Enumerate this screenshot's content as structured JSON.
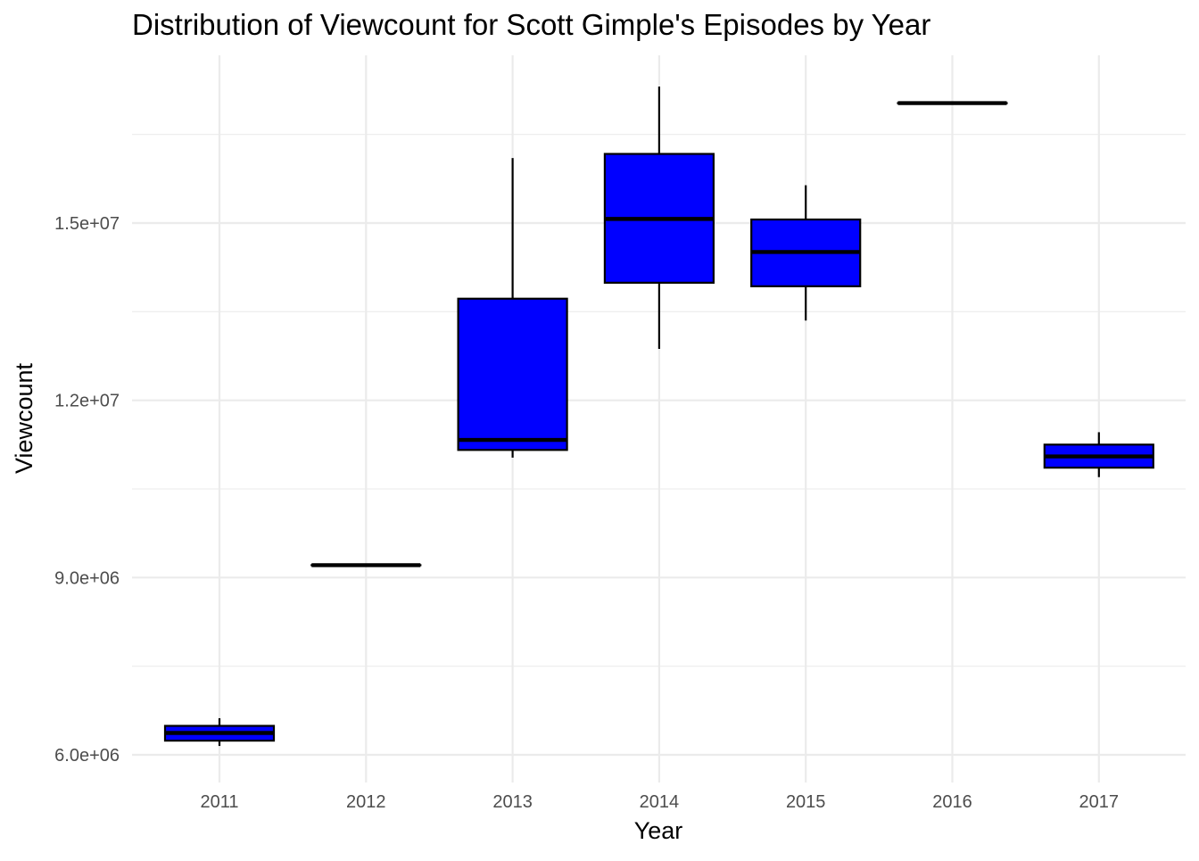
{
  "chart_data": {
    "type": "boxplot",
    "title": "Distribution of Viewcount for Scott Gimple's Episodes by Year",
    "xlabel": "Year",
    "ylabel": "Viewcount",
    "categories": [
      "2011",
      "2012",
      "2013",
      "2014",
      "2015",
      "2016",
      "2017"
    ],
    "boxes": [
      {
        "category": "2011",
        "min": 6150000,
        "q1": 6240000,
        "median": 6370000,
        "q3": 6490000,
        "max": 6620000
      },
      {
        "category": "2012",
        "min": 9210000,
        "q1": 9210000,
        "median": 9210000,
        "q3": 9210000,
        "max": 9210000
      },
      {
        "category": "2013",
        "min": 11030000,
        "q1": 11160000,
        "median": 11330000,
        "q3": 13720000,
        "max": 16100000
      },
      {
        "category": "2014",
        "min": 12870000,
        "q1": 13990000,
        "median": 15070000,
        "q3": 16170000,
        "max": 17310000
      },
      {
        "category": "2015",
        "min": 13350000,
        "q1": 13930000,
        "median": 14510000,
        "q3": 15060000,
        "max": 15640000
      },
      {
        "category": "2016",
        "min": 17030000,
        "q1": 17030000,
        "median": 17030000,
        "q3": 17030000,
        "max": 17030000
      },
      {
        "category": "2017",
        "min": 10700000,
        "q1": 10860000,
        "median": 11050000,
        "q3": 11250000,
        "max": 11460000
      }
    ],
    "y_ticks": [
      6000000,
      9000000,
      12000000,
      15000000
    ],
    "y_tick_labels": [
      "6.0e+06",
      "9.0e+06",
      "1.2e+07",
      "1.5e+07"
    ],
    "y_minor_ticks": [
      7500000,
      10500000,
      13500000,
      16500000
    ],
    "ylim": [
      5600000,
      17850000
    ],
    "grid": true,
    "legend": "none",
    "colors": {
      "box_fill": "#0000ff",
      "box_stroke": "#000000",
      "grid": "#ebebeb",
      "tick_text": "#4d4d4d"
    }
  }
}
